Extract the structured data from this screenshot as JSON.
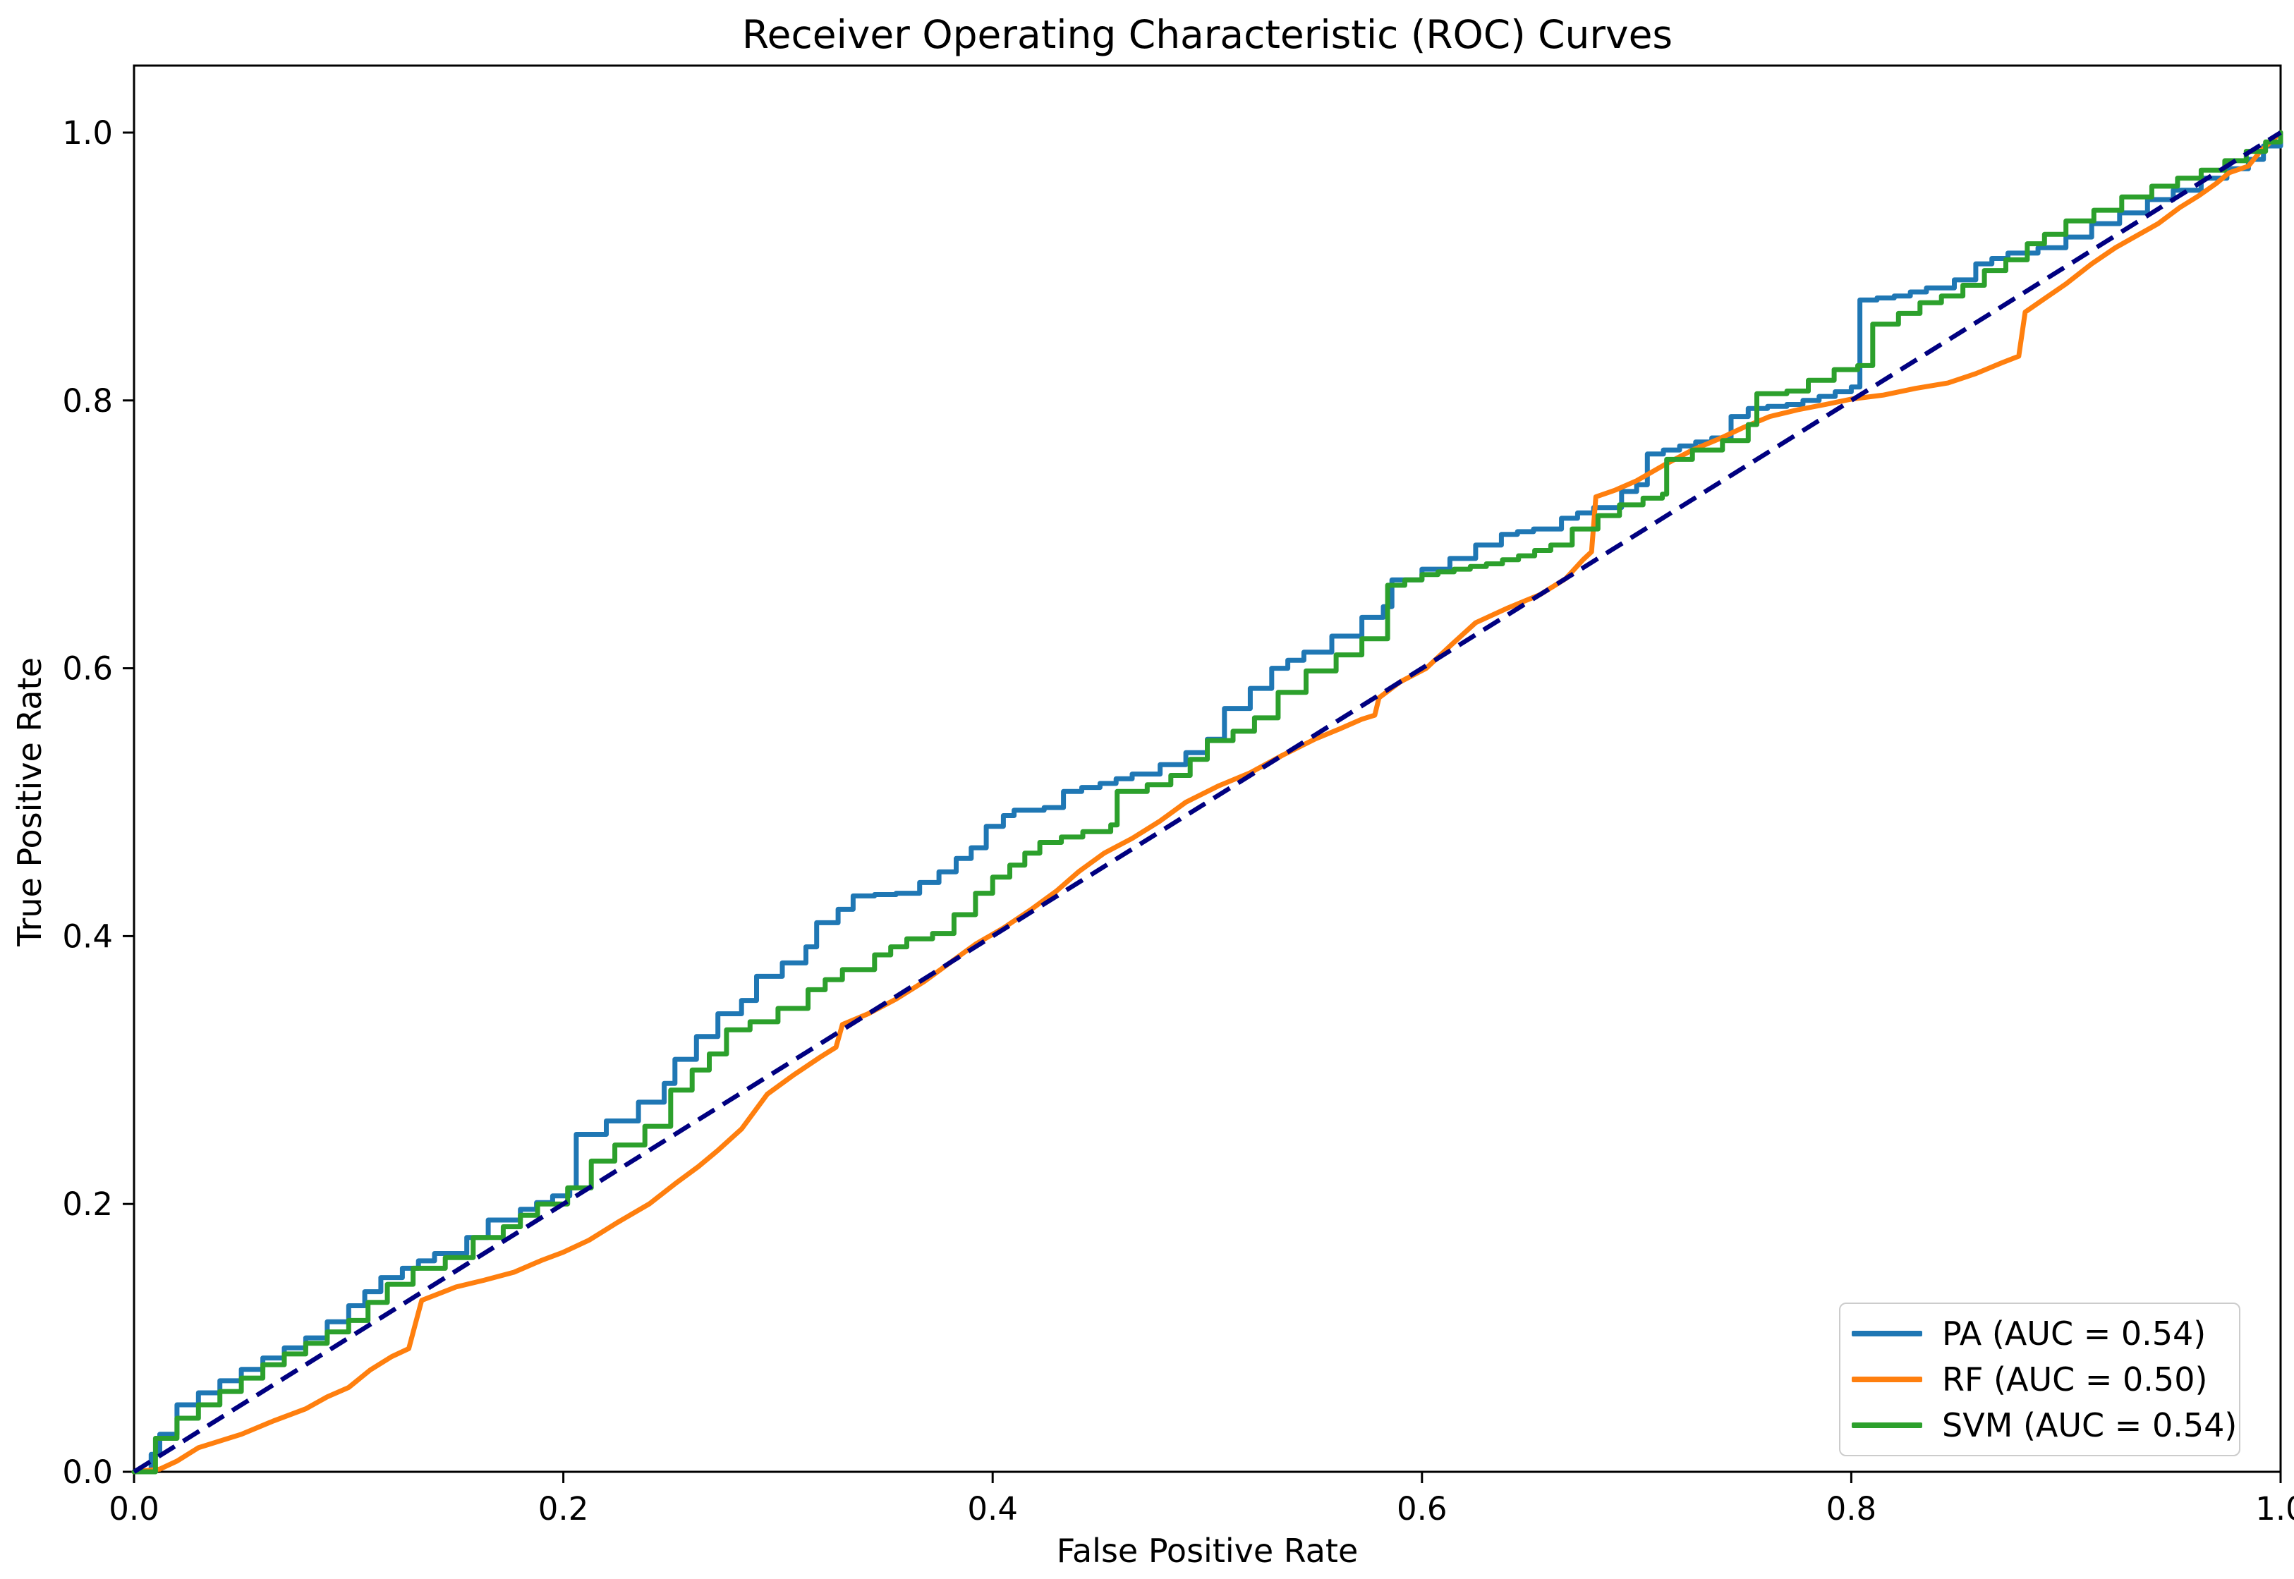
{
  "chart_data": {
    "type": "line",
    "title": "Receiver Operating Characteristic (ROC) Curves",
    "xlabel": "False Positive Rate",
    "ylabel": "True Positive Rate",
    "xlim": [
      0,
      1
    ],
    "ylim": [
      0,
      1.05
    ],
    "grid": false,
    "x_ticks": [
      {
        "v": 0.0,
        "label": "0.0"
      },
      {
        "v": 0.2,
        "label": "0.2"
      },
      {
        "v": 0.4,
        "label": "0.4"
      },
      {
        "v": 0.6,
        "label": "0.6"
      },
      {
        "v": 0.8,
        "label": "0.8"
      },
      {
        "v": 1.0,
        "label": "1.0"
      }
    ],
    "y_ticks": [
      {
        "v": 0.0,
        "label": "0.0"
      },
      {
        "v": 0.2,
        "label": "0.2"
      },
      {
        "v": 0.4,
        "label": "0.4"
      },
      {
        "v": 0.6,
        "label": "0.6"
      },
      {
        "v": 0.8,
        "label": "0.8"
      },
      {
        "v": 1.0,
        "label": "1.0"
      }
    ],
    "legend_position": "lower right",
    "diagonal": {
      "name": "chance-line",
      "color": "#000080",
      "style": "dashed",
      "points": [
        [
          0,
          0
        ],
        [
          1,
          1
        ]
      ]
    },
    "series": [
      {
        "name": "PA",
        "legend": "PA (AUC = 0.54)",
        "auc": 0.54,
        "color": "#1f77b4",
        "line_style": "step",
        "points": [
          [
            0,
            0
          ],
          [
            0.008,
            0.013
          ],
          [
            0.012,
            0.028
          ],
          [
            0.02,
            0.05
          ],
          [
            0.04,
            0.068
          ],
          [
            0.06,
            0.085
          ],
          [
            0.08,
            0.1
          ],
          [
            0.1,
            0.124
          ],
          [
            0.115,
            0.145
          ],
          [
            0.125,
            0.152
          ],
          [
            0.14,
            0.163
          ],
          [
            0.155,
            0.175
          ],
          [
            0.165,
            0.188
          ],
          [
            0.18,
            0.196
          ],
          [
            0.195,
            0.206
          ],
          [
            0.203,
            0.212
          ],
          [
            0.206,
            0.252
          ],
          [
            0.22,
            0.262
          ],
          [
            0.235,
            0.276
          ],
          [
            0.247,
            0.29
          ],
          [
            0.252,
            0.308
          ],
          [
            0.262,
            0.325
          ],
          [
            0.272,
            0.342
          ],
          [
            0.283,
            0.352
          ],
          [
            0.29,
            0.37
          ],
          [
            0.302,
            0.38
          ],
          [
            0.313,
            0.392
          ],
          [
            0.318,
            0.41
          ],
          [
            0.328,
            0.42
          ],
          [
            0.335,
            0.43
          ],
          [
            0.355,
            0.432
          ],
          [
            0.366,
            0.44
          ],
          [
            0.375,
            0.448
          ],
          [
            0.383,
            0.458
          ],
          [
            0.39,
            0.466
          ],
          [
            0.397,
            0.482
          ],
          [
            0.405,
            0.49
          ],
          [
            0.41,
            0.494
          ],
          [
            0.424,
            0.496
          ],
          [
            0.433,
            0.508
          ],
          [
            0.45,
            0.514
          ],
          [
            0.465,
            0.521
          ],
          [
            0.478,
            0.528
          ],
          [
            0.49,
            0.537
          ],
          [
            0.5,
            0.547
          ],
          [
            0.508,
            0.57
          ],
          [
            0.52,
            0.585
          ],
          [
            0.53,
            0.6
          ],
          [
            0.545,
            0.612
          ],
          [
            0.558,
            0.624
          ],
          [
            0.572,
            0.638
          ],
          [
            0.582,
            0.646
          ],
          [
            0.586,
            0.666
          ],
          [
            0.6,
            0.674
          ],
          [
            0.613,
            0.682
          ],
          [
            0.625,
            0.692
          ],
          [
            0.637,
            0.7
          ],
          [
            0.652,
            0.704
          ],
          [
            0.665,
            0.712
          ],
          [
            0.68,
            0.72
          ],
          [
            0.693,
            0.732
          ],
          [
            0.7,
            0.737
          ],
          [
            0.705,
            0.76
          ],
          [
            0.72,
            0.766
          ],
          [
            0.735,
            0.772
          ],
          [
            0.744,
            0.788
          ],
          [
            0.752,
            0.794
          ],
          [
            0.77,
            0.797
          ],
          [
            0.785,
            0.803
          ],
          [
            0.8,
            0.81
          ],
          [
            0.804,
            0.875
          ],
          [
            0.82,
            0.878
          ],
          [
            0.835,
            0.884
          ],
          [
            0.848,
            0.89
          ],
          [
            0.858,
            0.902
          ],
          [
            0.873,
            0.91
          ],
          [
            0.887,
            0.914
          ],
          [
            0.9,
            0.922
          ],
          [
            0.912,
            0.932
          ],
          [
            0.925,
            0.94
          ],
          [
            0.938,
            0.95
          ],
          [
            0.95,
            0.957
          ],
          [
            0.963,
            0.966
          ],
          [
            0.975,
            0.973
          ],
          [
            0.985,
            0.98
          ],
          [
            0.992,
            0.99
          ],
          [
            1,
            1
          ]
        ]
      },
      {
        "name": "RF",
        "legend": "RF (AUC = 0.50)",
        "auc": 0.5,
        "color": "#ff7f0e",
        "line_style": "linear",
        "points": [
          [
            0,
            0
          ],
          [
            0.012,
            0.002
          ],
          [
            0.02,
            0.008
          ],
          [
            0.03,
            0.018
          ],
          [
            0.05,
            0.028
          ],
          [
            0.065,
            0.038
          ],
          [
            0.08,
            0.047
          ],
          [
            0.09,
            0.056
          ],
          [
            0.1,
            0.063
          ],
          [
            0.11,
            0.076
          ],
          [
            0.12,
            0.086
          ],
          [
            0.128,
            0.092
          ],
          [
            0.131,
            0.11
          ],
          [
            0.134,
            0.128
          ],
          [
            0.15,
            0.138
          ],
          [
            0.163,
            0.143
          ],
          [
            0.177,
            0.149
          ],
          [
            0.19,
            0.158
          ],
          [
            0.2,
            0.164
          ],
          [
            0.212,
            0.173
          ],
          [
            0.225,
            0.186
          ],
          [
            0.24,
            0.2
          ],
          [
            0.252,
            0.215
          ],
          [
            0.263,
            0.228
          ],
          [
            0.272,
            0.24
          ],
          [
            0.283,
            0.256
          ],
          [
            0.295,
            0.282
          ],
          [
            0.307,
            0.296
          ],
          [
            0.32,
            0.31
          ],
          [
            0.327,
            0.317
          ],
          [
            0.33,
            0.334
          ],
          [
            0.342,
            0.342
          ],
          [
            0.355,
            0.353
          ],
          [
            0.368,
            0.366
          ],
          [
            0.38,
            0.38
          ],
          [
            0.392,
            0.394
          ],
          [
            0.405,
            0.406
          ],
          [
            0.418,
            0.42
          ],
          [
            0.43,
            0.434
          ],
          [
            0.44,
            0.448
          ],
          [
            0.452,
            0.462
          ],
          [
            0.465,
            0.473
          ],
          [
            0.478,
            0.486
          ],
          [
            0.49,
            0.5
          ],
          [
            0.505,
            0.512
          ],
          [
            0.52,
            0.522
          ],
          [
            0.535,
            0.535
          ],
          [
            0.55,
            0.547
          ],
          [
            0.562,
            0.555
          ],
          [
            0.572,
            0.562
          ],
          [
            0.578,
            0.565
          ],
          [
            0.58,
            0.578
          ],
          [
            0.59,
            0.59
          ],
          [
            0.602,
            0.6
          ],
          [
            0.614,
            0.618
          ],
          [
            0.625,
            0.634
          ],
          [
            0.64,
            0.645
          ],
          [
            0.655,
            0.655
          ],
          [
            0.667,
            0.667
          ],
          [
            0.675,
            0.681
          ],
          [
            0.679,
            0.687
          ],
          [
            0.681,
            0.728
          ],
          [
            0.69,
            0.733
          ],
          [
            0.7,
            0.74
          ],
          [
            0.713,
            0.752
          ],
          [
            0.726,
            0.763
          ],
          [
            0.738,
            0.771
          ],
          [
            0.75,
            0.78
          ],
          [
            0.762,
            0.788
          ],
          [
            0.775,
            0.793
          ],
          [
            0.788,
            0.797
          ],
          [
            0.8,
            0.801
          ],
          [
            0.815,
            0.804
          ],
          [
            0.83,
            0.809
          ],
          [
            0.845,
            0.813
          ],
          [
            0.858,
            0.82
          ],
          [
            0.87,
            0.828
          ],
          [
            0.878,
            0.833
          ],
          [
            0.881,
            0.866
          ],
          [
            0.89,
            0.876
          ],
          [
            0.9,
            0.887
          ],
          [
            0.912,
            0.902
          ],
          [
            0.923,
            0.914
          ],
          [
            0.933,
            0.923
          ],
          [
            0.943,
            0.932
          ],
          [
            0.953,
            0.944
          ],
          [
            0.962,
            0.953
          ],
          [
            0.97,
            0.962
          ],
          [
            0.976,
            0.97
          ],
          [
            0.985,
            0.975
          ],
          [
            0.99,
            0.985
          ],
          [
            1,
            1
          ]
        ]
      },
      {
        "name": "SVM",
        "legend": "SVM (AUC = 0.54)",
        "auc": 0.54,
        "color": "#2ca02c",
        "line_style": "step",
        "points": [
          [
            0,
            0
          ],
          [
            0.01,
            0.025
          ],
          [
            0.02,
            0.04
          ],
          [
            0.04,
            0.06
          ],
          [
            0.06,
            0.08
          ],
          [
            0.08,
            0.096
          ],
          [
            0.1,
            0.113
          ],
          [
            0.118,
            0.14
          ],
          [
            0.13,
            0.152
          ],
          [
            0.145,
            0.16
          ],
          [
            0.158,
            0.175
          ],
          [
            0.172,
            0.183
          ],
          [
            0.188,
            0.2
          ],
          [
            0.202,
            0.212
          ],
          [
            0.213,
            0.232
          ],
          [
            0.224,
            0.244
          ],
          [
            0.238,
            0.258
          ],
          [
            0.25,
            0.285
          ],
          [
            0.26,
            0.3
          ],
          [
            0.268,
            0.312
          ],
          [
            0.276,
            0.33
          ],
          [
            0.287,
            0.336
          ],
          [
            0.3,
            0.346
          ],
          [
            0.314,
            0.36
          ],
          [
            0.33,
            0.375
          ],
          [
            0.345,
            0.386
          ],
          [
            0.36,
            0.398
          ],
          [
            0.372,
            0.402
          ],
          [
            0.382,
            0.416
          ],
          [
            0.392,
            0.432
          ],
          [
            0.4,
            0.444
          ],
          [
            0.408,
            0.453
          ],
          [
            0.415,
            0.462
          ],
          [
            0.422,
            0.47
          ],
          [
            0.442,
            0.478
          ],
          [
            0.455,
            0.483
          ],
          [
            0.458,
            0.508
          ],
          [
            0.472,
            0.513
          ],
          [
            0.483,
            0.52
          ],
          [
            0.492,
            0.532
          ],
          [
            0.5,
            0.546
          ],
          [
            0.512,
            0.553
          ],
          [
            0.522,
            0.563
          ],
          [
            0.533,
            0.582
          ],
          [
            0.546,
            0.598
          ],
          [
            0.56,
            0.61
          ],
          [
            0.572,
            0.622
          ],
          [
            0.584,
            0.662
          ],
          [
            0.6,
            0.67
          ],
          [
            0.615,
            0.674
          ],
          [
            0.63,
            0.678
          ],
          [
            0.645,
            0.684
          ],
          [
            0.66,
            0.692
          ],
          [
            0.67,
            0.704
          ],
          [
            0.682,
            0.714
          ],
          [
            0.692,
            0.722
          ],
          [
            0.703,
            0.727
          ],
          [
            0.712,
            0.73
          ],
          [
            0.714,
            0.756
          ],
          [
            0.726,
            0.763
          ],
          [
            0.74,
            0.77
          ],
          [
            0.752,
            0.782
          ],
          [
            0.756,
            0.805
          ],
          [
            0.77,
            0.807
          ],
          [
            0.78,
            0.815
          ],
          [
            0.792,
            0.823
          ],
          [
            0.803,
            0.826
          ],
          [
            0.81,
            0.857
          ],
          [
            0.822,
            0.865
          ],
          [
            0.832,
            0.873
          ],
          [
            0.842,
            0.878
          ],
          [
            0.852,
            0.886
          ],
          [
            0.862,
            0.897
          ],
          [
            0.872,
            0.905
          ],
          [
            0.882,
            0.917
          ],
          [
            0.89,
            0.924
          ],
          [
            0.9,
            0.934
          ],
          [
            0.913,
            0.942
          ],
          [
            0.926,
            0.952
          ],
          [
            0.94,
            0.96
          ],
          [
            0.952,
            0.966
          ],
          [
            0.963,
            0.972
          ],
          [
            0.974,
            0.979
          ],
          [
            0.984,
            0.986
          ],
          [
            0.993,
            0.993
          ],
          [
            1,
            1
          ]
        ]
      }
    ],
    "colors": {
      "axis": "#000000",
      "tick_label": "#000000",
      "legend_border": "#cccccc",
      "background": "#ffffff"
    }
  }
}
